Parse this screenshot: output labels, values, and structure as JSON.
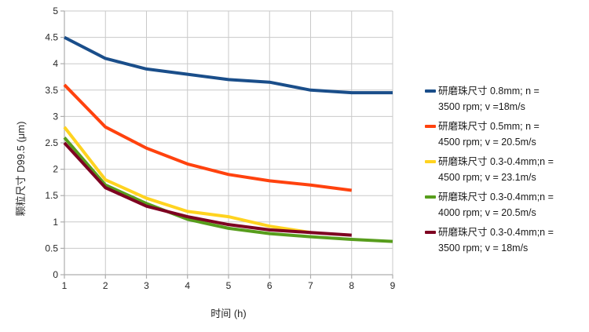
{
  "chart_data": {
    "type": "line",
    "title": "",
    "xlabel": "时间 (h)",
    "ylabel": "颗粒尺寸 D99.5 (μm)",
    "xlim": [
      1,
      9
    ],
    "ylim": [
      0,
      5
    ],
    "x_ticks": [
      1,
      2,
      3,
      4,
      5,
      6,
      7,
      8,
      9
    ],
    "y_ticks": [
      0,
      0.5,
      1,
      1.5,
      2,
      2.5,
      3,
      3.5,
      4,
      4.5,
      5
    ],
    "grid": "both",
    "legend_position": "right",
    "x": [
      1,
      2,
      3,
      4,
      5,
      6,
      7,
      8,
      9
    ],
    "series": [
      {
        "name": "研磨珠尺寸 0.8mm; n = 3500 rpm; v =18m/s",
        "label_lines": [
          "研磨珠尺寸 0.8mm; n =",
          "3500 rpm; v =18m/s"
        ],
        "color": "#1A4E8A",
        "values": [
          4.5,
          4.1,
          3.9,
          3.8,
          3.7,
          3.65,
          3.5,
          3.45,
          3.45
        ]
      },
      {
        "name": "研磨珠尺寸 0.5mm; n = 4500 rpm; v = 20.5m/s",
        "label_lines": [
          "研磨珠尺寸 0.5mm; n =",
          "4500 rpm; v = 20.5m/s"
        ],
        "color": "#FF420E",
        "values": [
          3.6,
          2.8,
          2.4,
          2.1,
          1.9,
          1.78,
          1.7,
          1.6
        ]
      },
      {
        "name": "研磨珠尺寸 0.3-0.4mm;n = 4500 rpm; v = 23.1m/s",
        "label_lines": [
          "研磨珠尺寸 0.3-0.4mm;n =",
          "4500 rpm; v = 23.1m/s"
        ],
        "color": "#FFD320",
        "values": [
          2.8,
          1.8,
          1.45,
          1.2,
          1.1,
          0.92,
          0.8
        ]
      },
      {
        "name": "研磨珠尺寸 0.3-0.4mm;n = 4000 rpm; v = 20.5m/s",
        "label_lines": [
          "研磨珠尺寸 0.3-0.4mm;n =",
          "4000 rpm; v = 20.5m/s"
        ],
        "color": "#579D1C",
        "values": [
          2.6,
          1.7,
          1.35,
          1.05,
          0.88,
          0.78,
          0.72,
          0.67,
          0.63
        ]
      },
      {
        "name": "研磨珠尺寸 0.3-0.4mm;n = 3500 rpm; v = 18m/s",
        "label_lines": [
          "研磨珠尺寸 0.3-0.4mm;n =",
          "3500 rpm; v = 18m/s"
        ],
        "color": "#7E0021",
        "values": [
          2.5,
          1.65,
          1.3,
          1.1,
          0.95,
          0.85,
          0.8,
          0.75
        ]
      }
    ],
    "colors": {
      "gridline": "#C9C9C9",
      "axis": "#ADADAD",
      "text": "#262626",
      "background": "#FFFFFF"
    }
  }
}
